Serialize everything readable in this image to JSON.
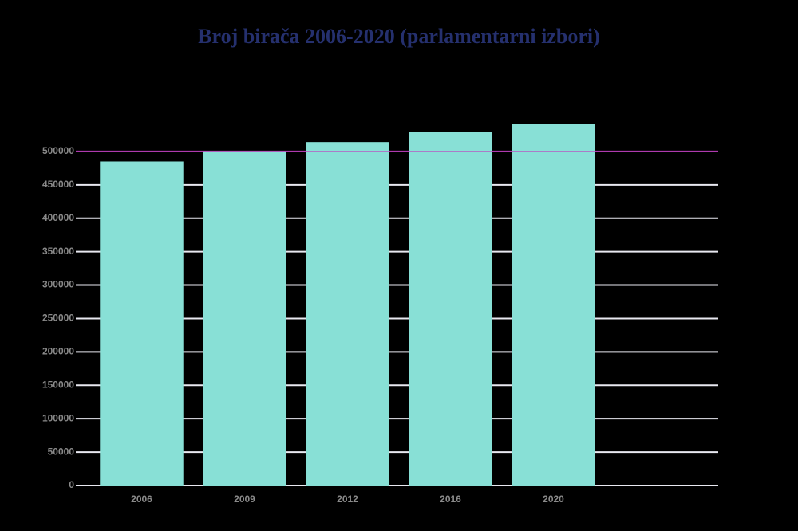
{
  "chart_data": {
    "type": "bar",
    "title": "Broj birača 2006-2020 (parlamentarni izbori)",
    "categories": [
      "2006",
      "2009",
      "2012",
      "2016",
      "2020"
    ],
    "values": [
      485000,
      499000,
      514000,
      529000,
      541000
    ],
    "color": "#88e0d6",
    "ylim": [
      0,
      550000
    ],
    "yticks": [
      0,
      50000,
      100000,
      150000,
      200000,
      250000,
      300000,
      350000,
      400000,
      450000,
      500000
    ],
    "grid": true,
    "reference_line": {
      "value": 500000,
      "color": "#c040c0"
    }
  }
}
